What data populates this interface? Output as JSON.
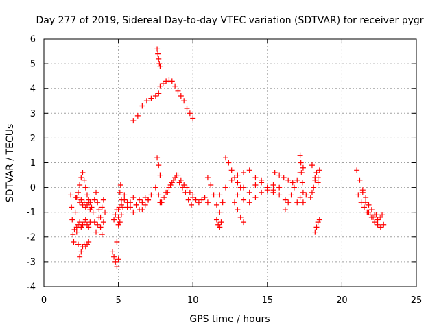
{
  "chart_data": {
    "type": "scatter",
    "title": "Day 277 of 2019, Sidereal Day-to-day VTEC variation (SDTVAR) for receiver pygr",
    "xlabel": "GPS time / hours",
    "ylabel": "SDTVAR / TECUs",
    "xlim": [
      0,
      25
    ],
    "ylim": [
      -4,
      6
    ],
    "xticks": [
      0,
      5,
      10,
      15,
      20,
      25
    ],
    "yticks": [
      -4,
      -3,
      -2,
      -1,
      0,
      1,
      2,
      3,
      4,
      5,
      6
    ],
    "grid": true,
    "marker": "plus",
    "color": "#ff0000",
    "series": [
      {
        "name": "SDTVAR",
        "tracks": [
          {
            "x": [
              1.8,
              1.85,
              1.9,
              1.95,
              2.0,
              2.05,
              2.1,
              2.15
            ],
            "y": [
              -0.3,
              -0.8,
              -1.3,
              -1.9,
              -2.2,
              -1.7,
              -1.0,
              -0.4
            ]
          },
          {
            "x": [
              2.2,
              2.3,
              2.4,
              2.5,
              2.6,
              2.7,
              2.8,
              2.9,
              3.0
            ],
            "y": [
              -1.8,
              -2.3,
              -2.8,
              -2.6,
              -2.4,
              -2.3,
              -2.4,
              -2.3,
              -2.2
            ]
          },
          {
            "x": [
              2.2,
              2.3,
              2.4,
              2.5,
              2.6,
              2.7,
              2.8,
              2.9,
              3.0,
              3.1
            ],
            "y": [
              -1.6,
              -1.5,
              -1.4,
              -1.6,
              -1.5,
              -1.4,
              -1.3,
              -1.5,
              -1.6,
              -1.4
            ]
          },
          {
            "x": [
              2.2,
              2.3,
              2.4,
              2.5,
              2.6,
              2.7,
              2.8,
              2.9,
              3.0,
              3.1
            ],
            "y": [
              -0.4,
              -0.2,
              0.1,
              0.4,
              0.6,
              0.3,
              0.0,
              -0.3,
              -0.6,
              -0.9
            ]
          },
          {
            "x": [
              2.4,
              2.5,
              2.6,
              2.7,
              2.8,
              2.9,
              3.0,
              3.1,
              3.2
            ],
            "y": [
              -0.6,
              -0.5,
              -0.7,
              -0.6,
              -0.8,
              -0.7,
              -0.5,
              -0.6,
              -0.8
            ]
          },
          {
            "x": [
              3.3,
              3.4,
              3.5,
              3.6,
              3.7,
              3.8,
              3.9,
              4.0
            ],
            "y": [
              -1.0,
              -1.4,
              -1.8,
              -1.5,
              -1.2,
              -1.6,
              -1.9,
              -1.4
            ]
          },
          {
            "x": [
              3.4,
              3.5,
              3.6,
              3.7,
              3.8,
              3.9,
              4.0,
              4.1
            ],
            "y": [
              -0.5,
              -0.2,
              -0.6,
              -0.9,
              -1.2,
              -0.8,
              -0.5,
              -1.0
            ]
          },
          {
            "x": [
              4.6,
              4.7,
              4.8,
              4.9,
              5.0
            ],
            "y": [
              -2.6,
              -2.8,
              -3.0,
              -3.2,
              -2.9
            ]
          },
          {
            "x": [
              4.9,
              5.0,
              5.05,
              5.1,
              5.15
            ],
            "y": [
              -2.2,
              -1.5,
              -0.8,
              -0.2,
              0.1
            ]
          },
          {
            "x": [
              4.7,
              4.8,
              4.9,
              5.0,
              5.1,
              5.2,
              5.3
            ],
            "y": [
              -1.3,
              -1.1,
              -0.9,
              -1.2,
              -1.4,
              -1.1,
              -0.8
            ]
          },
          {
            "x": [
              5.0,
              5.2,
              5.4,
              5.6,
              5.8,
              6.0,
              6.2,
              6.4,
              6.6,
              6.8,
              7.0,
              7.2
            ],
            "y": [
              -0.9,
              -0.7,
              -0.5,
              -0.8,
              -0.6,
              -0.4,
              -0.7,
              -0.9,
              -0.6,
              -0.4,
              -0.5,
              -0.3
            ]
          },
          {
            "x": [
              5.2,
              5.4,
              5.6,
              5.8,
              6.0,
              6.2,
              6.4,
              6.6,
              6.8,
              7.0
            ],
            "y": [
              -0.5,
              -0.3,
              -0.6,
              -0.8,
              -1.0,
              -0.7,
              -0.5,
              -0.9,
              -0.7,
              -0.5
            ]
          },
          {
            "x": [
              6.0,
              6.3,
              6.6,
              6.9,
              7.2,
              7.5,
              7.7
            ],
            "y": [
              2.7,
              2.9,
              3.3,
              3.5,
              3.6,
              3.7,
              3.8
            ]
          },
          {
            "x": [
              7.6,
              7.65,
              7.7,
              7.75,
              7.8
            ],
            "y": [
              5.6,
              5.4,
              5.2,
              5.0,
              4.9
            ]
          },
          {
            "x": [
              7.6,
              7.7,
              7.8
            ],
            "y": [
              1.2,
              0.9,
              0.5
            ]
          },
          {
            "x": [
              7.5,
              7.7,
              7.9,
              8.1,
              8.3,
              8.5,
              8.7,
              8.9,
              9.1,
              9.3,
              9.5,
              9.7,
              9.9
            ],
            "y": [
              0.0,
              -0.3,
              -0.6,
              -0.4,
              -0.2,
              0.1,
              0.3,
              0.5,
              0.2,
              0.0,
              -0.2,
              -0.5,
              -0.7
            ]
          },
          {
            "x": [
              7.8,
              8.0,
              8.2,
              8.4,
              8.6,
              8.8,
              9.0,
              9.2,
              9.4,
              9.6,
              9.8,
              10.0
            ],
            "y": [
              4.1,
              4.2,
              4.3,
              4.35,
              4.3,
              4.1,
              3.9,
              3.7,
              3.5,
              3.2,
              3.0,
              2.8
            ]
          },
          {
            "x": [
              7.8,
              8.0,
              8.2,
              8.4,
              8.6,
              8.8,
              9.0,
              9.2,
              9.4,
              9.6,
              9.8,
              10.0
            ],
            "y": [
              -0.6,
              -0.4,
              -0.2,
              0.0,
              0.2,
              0.4,
              0.5,
              0.3,
              0.1,
              0.0,
              -0.2,
              -0.4
            ]
          },
          {
            "x": [
              10.0,
              10.2,
              10.4,
              10.6,
              10.8,
              11.0
            ],
            "y": [
              -0.3,
              -0.5,
              -0.6,
              -0.5,
              -0.4,
              -0.6
            ]
          },
          {
            "x": [
              11.0,
              11.2,
              11.4,
              11.6,
              11.8,
              12.0
            ],
            "y": [
              0.4,
              0.1,
              -0.3,
              -0.7,
              -1.0,
              -0.6
            ]
          },
          {
            "x": [
              11.6,
              11.7,
              11.8,
              11.9
            ],
            "y": [
              -1.3,
              -1.5,
              -1.6,
              -1.4
            ]
          },
          {
            "x": [
              12.2,
              12.4,
              12.6,
              12.8,
              13.0,
              13.2
            ],
            "y": [
              1.2,
              1.0,
              0.7,
              0.4,
              0.2,
              0.0
            ]
          },
          {
            "x": [
              11.8,
              12.2,
              12.6,
              13.0,
              13.4,
              13.8,
              14.2,
              14.6,
              15.0,
              15.4
            ],
            "y": [
              -0.3,
              0.0,
              0.3,
              0.2,
              0.0,
              -0.2,
              0.1,
              0.3,
              0.0,
              -0.2
            ]
          },
          {
            "x": [
              12.8,
              13.0,
              13.2,
              13.4
            ],
            "y": [
              -0.6,
              -0.9,
              -1.2,
              -1.4
            ]
          },
          {
            "x": [
              13.0,
              13.4,
              13.8,
              14.2,
              14.6,
              15.0,
              15.4,
              15.8,
              16.2
            ],
            "y": [
              0.5,
              0.6,
              0.7,
              0.4,
              0.2,
              0.0,
              -0.1,
              -0.3,
              -0.5
            ]
          },
          {
            "x": [
              13.0,
              13.4,
              13.8,
              14.2,
              14.6,
              15.0,
              15.4,
              15.8
            ],
            "y": [
              -0.3,
              -0.5,
              -0.6,
              -0.4,
              -0.2,
              -0.1,
              0.1,
              0.0
            ]
          },
          {
            "x": [
              15.5,
              15.8,
              16.1,
              16.4,
              16.7
            ],
            "y": [
              0.6,
              0.5,
              0.4,
              0.3,
              0.2
            ]
          },
          {
            "x": [
              16.2,
              16.4,
              16.6,
              16.8,
              17.0,
              17.2,
              17.4
            ],
            "y": [
              -0.9,
              -0.6,
              -0.3,
              0.0,
              0.3,
              0.6,
              0.8
            ]
          },
          {
            "x": [
              17.2,
              17.25,
              17.3,
              17.35,
              17.4
            ],
            "y": [
              1.3,
              1.0,
              0.6,
              0.2,
              -0.2
            ]
          },
          {
            "x": [
              17.0,
              17.2,
              17.4,
              17.6
            ],
            "y": [
              -0.6,
              -0.4,
              -0.6,
              -0.3
            ]
          },
          {
            "x": [
              18.0,
              18.2,
              18.4
            ],
            "y": [
              0.9,
              0.4,
              0.2
            ]
          },
          {
            "x": [
              17.9,
              18.0,
              18.1,
              18.2,
              18.3,
              18.4,
              18.5
            ],
            "y": [
              -0.4,
              -0.2,
              0.0,
              0.3,
              0.6,
              0.4,
              0.7
            ]
          },
          {
            "x": [
              18.2,
              18.3,
              18.4,
              18.5
            ],
            "y": [
              -1.8,
              -1.6,
              -1.4,
              -1.3
            ]
          },
          {
            "x": [
              21.0,
              21.2,
              21.4,
              21.6,
              21.8,
              22.0,
              22.2,
              22.4,
              22.6,
              22.8
            ],
            "y": [
              0.7,
              0.3,
              -0.2,
              -0.6,
              -1.0,
              -1.2,
              -1.4,
              -1.5,
              -1.6,
              -1.5
            ]
          },
          {
            "x": [
              21.1,
              21.3,
              21.5,
              21.7,
              21.9,
              22.1,
              22.3,
              22.5,
              22.7
            ],
            "y": [
              -0.3,
              -0.6,
              -0.8,
              -1.0,
              -1.1,
              -1.2,
              -1.1,
              -1.2,
              -1.1
            ]
          },
          {
            "x": [
              21.4,
              21.6,
              21.8,
              22.0,
              22.2,
              22.4,
              22.6
            ],
            "y": [
              -0.1,
              -0.4,
              -0.7,
              -0.9,
              -1.1,
              -1.3,
              -1.2
            ]
          }
        ]
      }
    ]
  }
}
